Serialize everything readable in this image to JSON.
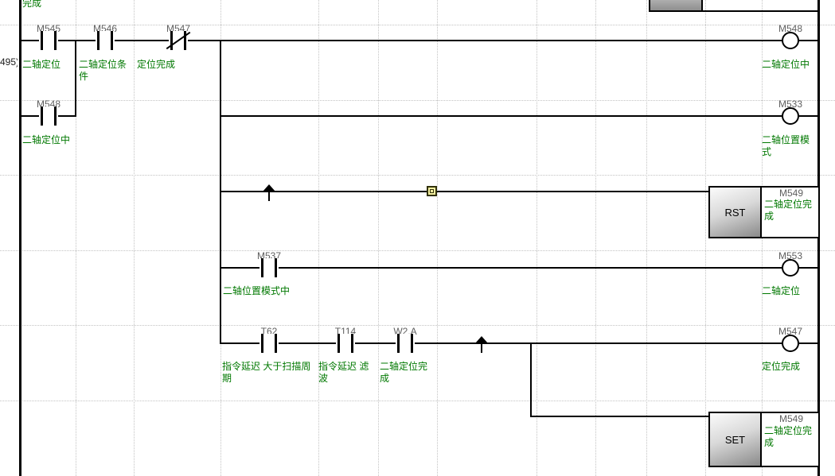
{
  "editor": {
    "step_number": "495)",
    "clipped_comment_top": "完成"
  },
  "colors": {
    "comment_green": "#007800",
    "device_gray": "#5f5f5f",
    "wire_black": "#000000",
    "grid_gray": "#c3c3c3",
    "marker_yellow": "#f5f0a0"
  },
  "rung1": {
    "contact1": {
      "name": "M545",
      "comment": "二轴定位",
      "type": "normally-open"
    },
    "contact2": {
      "name": "M546",
      "comment": "二轴定位条件",
      "type": "normally-open"
    },
    "contact3": {
      "name": "M547",
      "comment": "定位完成",
      "type": "normally-closed"
    },
    "parallel_contact": {
      "name": "M548",
      "comment": "二轴定位中",
      "type": "normally-open"
    },
    "coil": {
      "name": "M548",
      "comment": "二轴定位中"
    }
  },
  "branch_m533": {
    "coil": {
      "name": "M533",
      "comment": "二轴位置模式"
    }
  },
  "branch_rst": {
    "block_mnemonic": "RST",
    "operand": "M549",
    "comment": "二轴定位完成"
  },
  "branch_m553": {
    "contact": {
      "name": "M537",
      "comment": "二轴位置模式中",
      "type": "normally-open"
    },
    "coil": {
      "name": "M553",
      "comment": "二轴定位"
    }
  },
  "branch_m547": {
    "contact1": {
      "name": "T62",
      "comment": "指令延迟 大于扫描周期",
      "type": "normally-open"
    },
    "contact2": {
      "name": "T114",
      "comment": "指令延迟 滤波",
      "type": "normally-open"
    },
    "contact3": {
      "name": "W2.A",
      "comment": "二轴定位完成",
      "type": "normally-open"
    },
    "coil": {
      "name": "M547",
      "comment": "定位完成"
    }
  },
  "branch_set": {
    "block_mnemonic": "SET",
    "operand": "M549",
    "comment": "二轴定位完成"
  }
}
